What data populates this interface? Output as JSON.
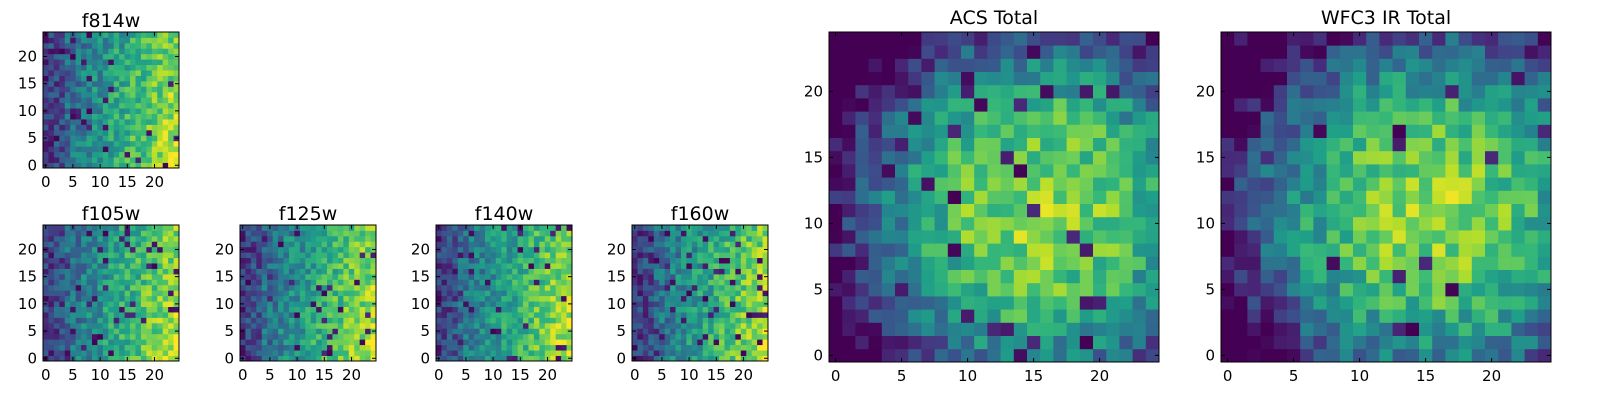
{
  "chart_data": [
    {
      "type": "heatmap",
      "title": "f814w",
      "xlabel": "",
      "ylabel": "",
      "xlim": [
        0,
        24
      ],
      "ylim": [
        0,
        24
      ],
      "xticks": [
        0,
        5,
        10,
        15,
        20
      ],
      "yticks": [
        0,
        5,
        10,
        15,
        20
      ],
      "grid": false,
      "pattern": "gradient-lower-right-bright",
      "dark_pixel_fraction": 0.04,
      "seed": 11
    },
    {
      "type": "heatmap",
      "title": "f105w",
      "xlabel": "",
      "ylabel": "",
      "xlim": [
        0,
        24
      ],
      "ylim": [
        0,
        24
      ],
      "xticks": [
        0,
        5,
        10,
        15,
        20
      ],
      "yticks": [
        0,
        5,
        10,
        15,
        20
      ],
      "grid": false,
      "pattern": "gradient-lower-right-bright",
      "dark_pixel_fraction": 0.06,
      "seed": 23
    },
    {
      "type": "heatmap",
      "title": "f125w",
      "xlabel": "",
      "ylabel": "",
      "xlim": [
        0,
        24
      ],
      "ylim": [
        0,
        24
      ],
      "xticks": [
        0,
        5,
        10,
        15,
        20
      ],
      "yticks": [
        0,
        5,
        10,
        15,
        20
      ],
      "grid": false,
      "pattern": "gradient-lower-right-bright",
      "dark_pixel_fraction": 0.04,
      "seed": 37
    },
    {
      "type": "heatmap",
      "title": "f140w",
      "xlabel": "",
      "ylabel": "",
      "xlim": [
        0,
        24
      ],
      "ylim": [
        0,
        24
      ],
      "xticks": [
        0,
        5,
        10,
        15,
        20
      ],
      "yticks": [
        0,
        5,
        10,
        15,
        20
      ],
      "grid": false,
      "pattern": "gradient-lower-right-bright",
      "dark_pixel_fraction": 0.05,
      "seed": 41
    },
    {
      "type": "heatmap",
      "title": "f160w",
      "xlabel": "",
      "ylabel": "",
      "xlim": [
        0,
        24
      ],
      "ylim": [
        0,
        24
      ],
      "xticks": [
        0,
        5,
        10,
        15,
        20
      ],
      "yticks": [
        0,
        5,
        10,
        15,
        20
      ],
      "grid": false,
      "pattern": "gradient-lower-right-bright",
      "dark_pixel_fraction": 0.08,
      "seed": 53
    },
    {
      "type": "heatmap",
      "title": "ACS Total",
      "xlabel": "",
      "ylabel": "",
      "xlim": [
        0,
        24
      ],
      "ylim": [
        0,
        24
      ],
      "xticks": [
        0,
        5,
        10,
        15,
        20
      ],
      "yticks": [
        0,
        5,
        10,
        15,
        20
      ],
      "grid": false,
      "pattern": "central-bright",
      "dark_pixel_fraction": 0.05,
      "seed": 67
    },
    {
      "type": "heatmap",
      "title": "WFC3 IR Total",
      "xlabel": "",
      "ylabel": "",
      "xlim": [
        0,
        24
      ],
      "ylim": [
        0,
        24
      ],
      "xticks": [
        0,
        5,
        10,
        15,
        20
      ],
      "yticks": [
        0,
        5,
        10,
        15,
        20
      ],
      "grid": false,
      "pattern": "central-bright",
      "dark_pixel_fraction": 0.05,
      "seed": 79
    }
  ],
  "colormap": "viridis",
  "colors": {
    "viridis": [
      "#440154",
      "#482878",
      "#3e4989",
      "#31688e",
      "#26828e",
      "#1f9e89",
      "#35b779",
      "#6ece58",
      "#b5de2b",
      "#fde725"
    ],
    "frame": "#000000",
    "background": "#ffffff"
  }
}
